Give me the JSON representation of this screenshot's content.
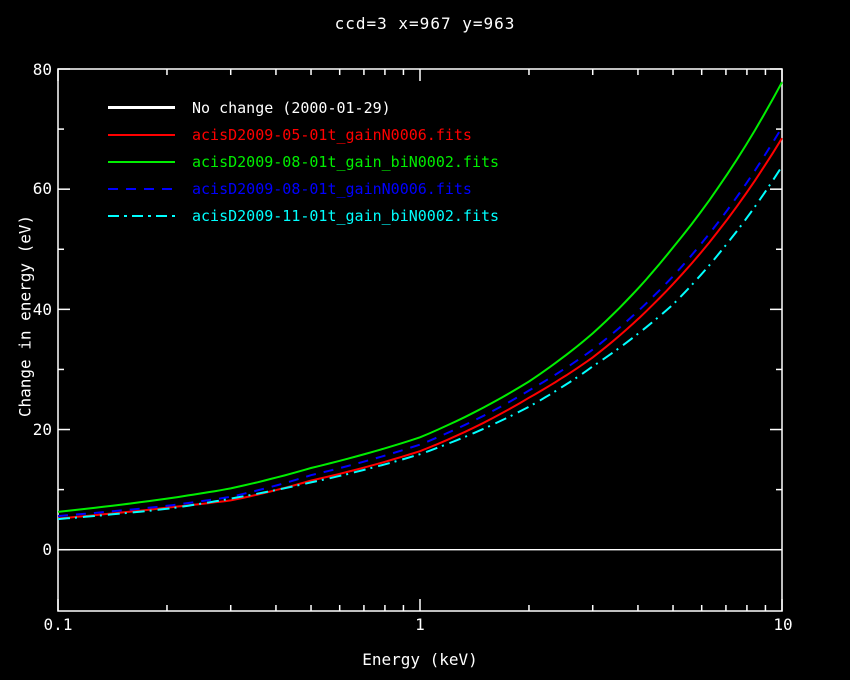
{
  "chart_data": {
    "type": "line",
    "title": "ccd=3 x=967 y=963",
    "xlabel": "Energy (keV)",
    "ylabel": "Change in energy (eV)",
    "x_scale": "log",
    "xlim": [
      0.1,
      10
    ],
    "ylim": [
      -10.2,
      80
    ],
    "grid": false,
    "background": "#000000",
    "axis_color": "#ffffff",
    "legend_position": "top-left",
    "x_major_ticks": [
      0.1,
      1,
      10
    ],
    "x_tick_labels": [
      "0.1",
      "1",
      "10"
    ],
    "x_minor_ticks": [
      0.2,
      0.3,
      0.4,
      0.5,
      0.6,
      0.7,
      0.8,
      0.9,
      2,
      3,
      4,
      5,
      6,
      7,
      8,
      9
    ],
    "y_major_ticks": [
      0,
      20,
      40,
      60,
      80
    ],
    "y_tick_labels": [
      "0",
      "20",
      "40",
      "60",
      "80"
    ],
    "y_minor_ticks": [
      10,
      30,
      50,
      70
    ],
    "x": [
      0.1,
      0.2,
      0.3,
      0.5,
      1,
      2,
      3,
      5,
      10
    ],
    "series": [
      {
        "name": "No change (2000-01-29)",
        "color": "#ffffff",
        "style": "solid",
        "values": [
          0,
          0,
          0,
          0,
          0,
          0,
          0,
          0,
          0
        ]
      },
      {
        "name": "acisD2009-05-01t_gainN0006.fits",
        "color": "#ff0000",
        "style": "solid",
        "values": [
          5.2,
          7.0,
          8.2,
          11.5,
          16.4,
          25.3,
          32.0,
          44.2,
          68.5
        ]
      },
      {
        "name": "acisD2009-08-01t_gain_biN0002.fits",
        "color": "#00ee00",
        "style": "solid",
        "values": [
          6.3,
          8.5,
          10.2,
          13.6,
          18.7,
          28.0,
          36.0,
          50.3,
          77.8
        ]
      },
      {
        "name": "acisD2009-08-01t_gainN0006.fits",
        "color": "#0000ff",
        "style": "dashed",
        "values": [
          5.6,
          7.3,
          8.8,
          12.4,
          17.5,
          26.5,
          33.3,
          45.5,
          70.3
        ]
      },
      {
        "name": "acisD2009-11-01t_gain_biN0002.fits",
        "color": "#00ffff",
        "style": "dashdot",
        "values": [
          5.1,
          6.8,
          8.5,
          11.2,
          15.9,
          23.8,
          30.5,
          40.8,
          63.8
        ]
      }
    ]
  }
}
